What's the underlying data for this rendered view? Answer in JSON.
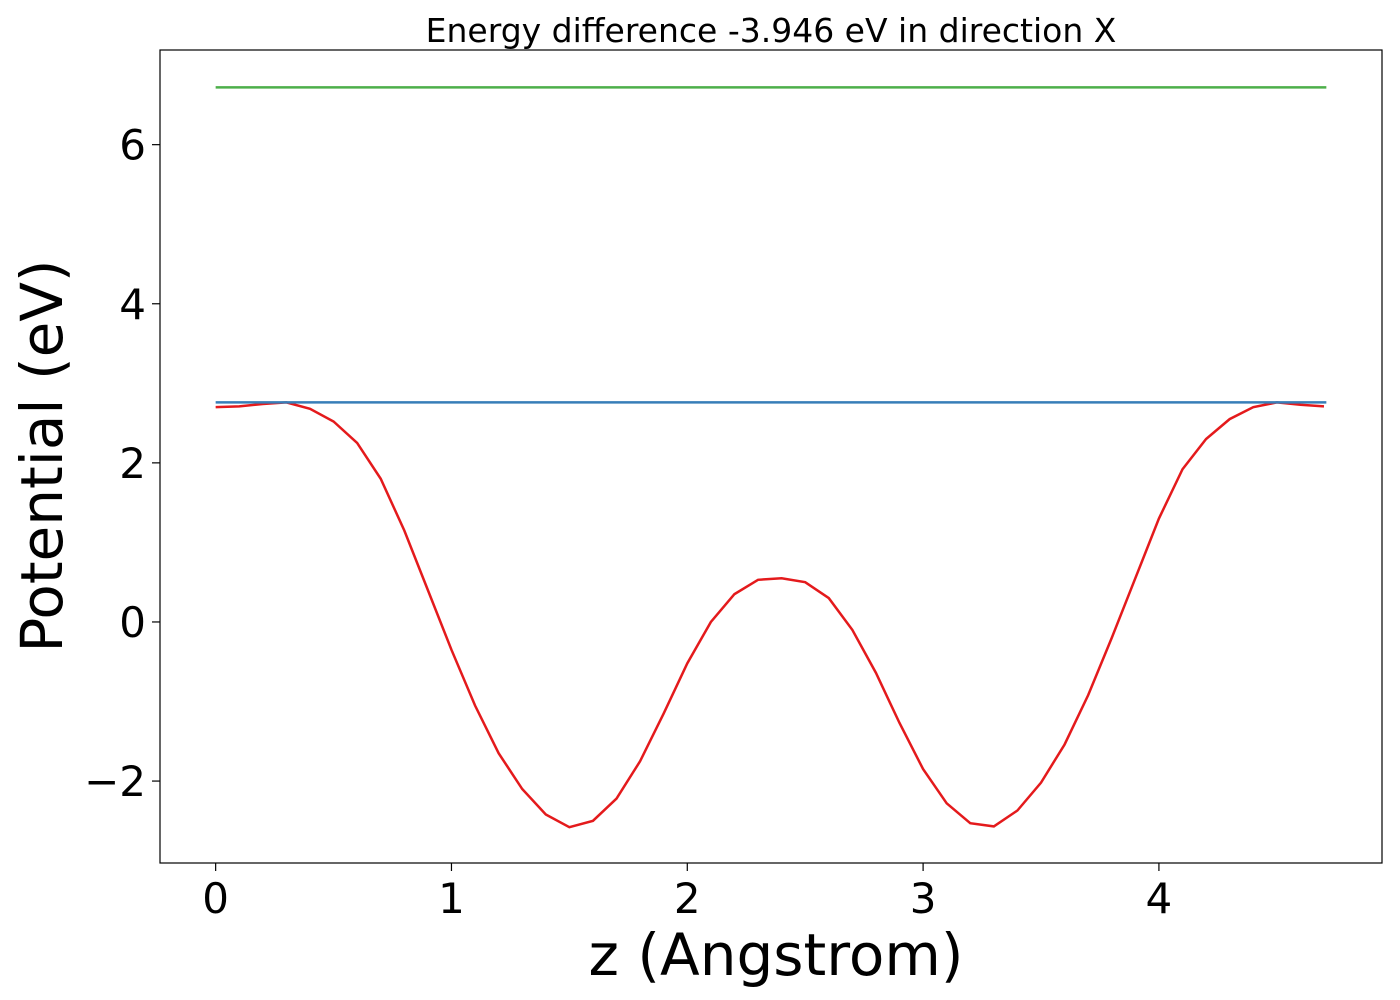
{
  "chart_data": {
    "type": "line",
    "title": "Energy difference -3.946 eV in direction X",
    "x_label": "z (Angstrom)",
    "y_label": "Potential (eV)",
    "xlim": [
      -0.236,
      4.946
    ],
    "ylim": [
      -3.03,
      7.19
    ],
    "xticks": [
      0,
      1,
      2,
      3,
      4
    ],
    "yticks": [
      {
        "value": -2,
        "label": "−2"
      },
      0,
      2,
      4,
      6
    ],
    "series": [
      {
        "color": "#e41a1c",
        "x": [
          0,
          0.1,
          0.2,
          0.3,
          0.4,
          0.5,
          0.6,
          0.7,
          0.8,
          0.9,
          1.0,
          1.1,
          1.2,
          1.3,
          1.4,
          1.5,
          1.6,
          1.7,
          1.8,
          1.9,
          2.0,
          2.1,
          2.2,
          2.3,
          2.4,
          2.5,
          2.6,
          2.7,
          2.8,
          2.9,
          3.0,
          3.1,
          3.2,
          3.3,
          3.4,
          3.5,
          3.6,
          3.7,
          3.8,
          3.9,
          4.0,
          4.1,
          4.2,
          4.3,
          4.4,
          4.5,
          4.6,
          4.7
        ],
        "values": [
          2.7,
          2.71,
          2.74,
          2.76,
          2.68,
          2.52,
          2.25,
          1.8,
          1.15,
          0.4,
          -0.35,
          -1.05,
          -1.65,
          -2.1,
          -2.42,
          -2.58,
          -2.5,
          -2.22,
          -1.75,
          -1.15,
          -0.52,
          0.0,
          0.35,
          0.53,
          0.55,
          0.5,
          0.3,
          -0.1,
          -0.64,
          -1.27,
          -1.85,
          -2.28,
          -2.53,
          -2.57,
          -2.37,
          -2.02,
          -1.54,
          -0.92,
          -0.2,
          0.55,
          1.3,
          1.92,
          2.3,
          2.55,
          2.7,
          2.76,
          2.73,
          2.71
        ]
      },
      {
        "color": "#4daf4a",
        "x": [
          0,
          4.71
        ],
        "values": [
          6.72,
          6.72
        ]
      },
      {
        "color": "#377eb8",
        "x": [
          0,
          4.71
        ],
        "values": [
          2.76,
          2.76
        ]
      }
    ]
  }
}
